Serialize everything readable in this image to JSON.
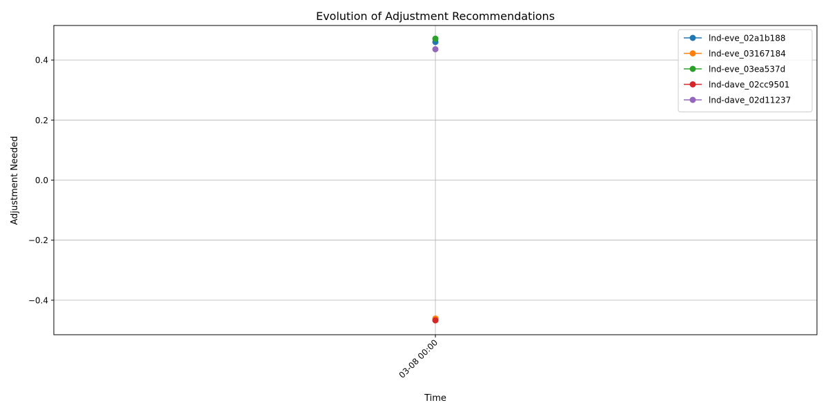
{
  "chart_data": {
    "type": "line",
    "title": "Evolution of Adjustment Recommendations",
    "xlabel": "Time",
    "ylabel": "Adjustment Needed",
    "x": [
      "03-08 00:00"
    ],
    "ylim": [
      -0.515,
      0.515
    ],
    "yticks": [
      -0.4,
      -0.2,
      0.0,
      0.2,
      0.4
    ],
    "ytick_labels": [
      "−0.4",
      "−0.2",
      "0.0",
      "0.2",
      "0.4"
    ],
    "grid": true,
    "legend_position": "top-right",
    "series": [
      {
        "name": "lnd-eve_02a1b188",
        "color": "#1f77b4",
        "values": [
          0.46
        ]
      },
      {
        "name": "lnd-eve_03167184",
        "color": "#ff7f0e",
        "values": [
          -0.461
        ]
      },
      {
        "name": "lnd-eve_03ea537d",
        "color": "#2ca02c",
        "values": [
          0.471
        ]
      },
      {
        "name": "lnd-dave_02cc9501",
        "color": "#d62728",
        "values": [
          -0.467
        ]
      },
      {
        "name": "lnd-dave_02d11237",
        "color": "#9467bd",
        "values": [
          0.436
        ]
      }
    ]
  }
}
